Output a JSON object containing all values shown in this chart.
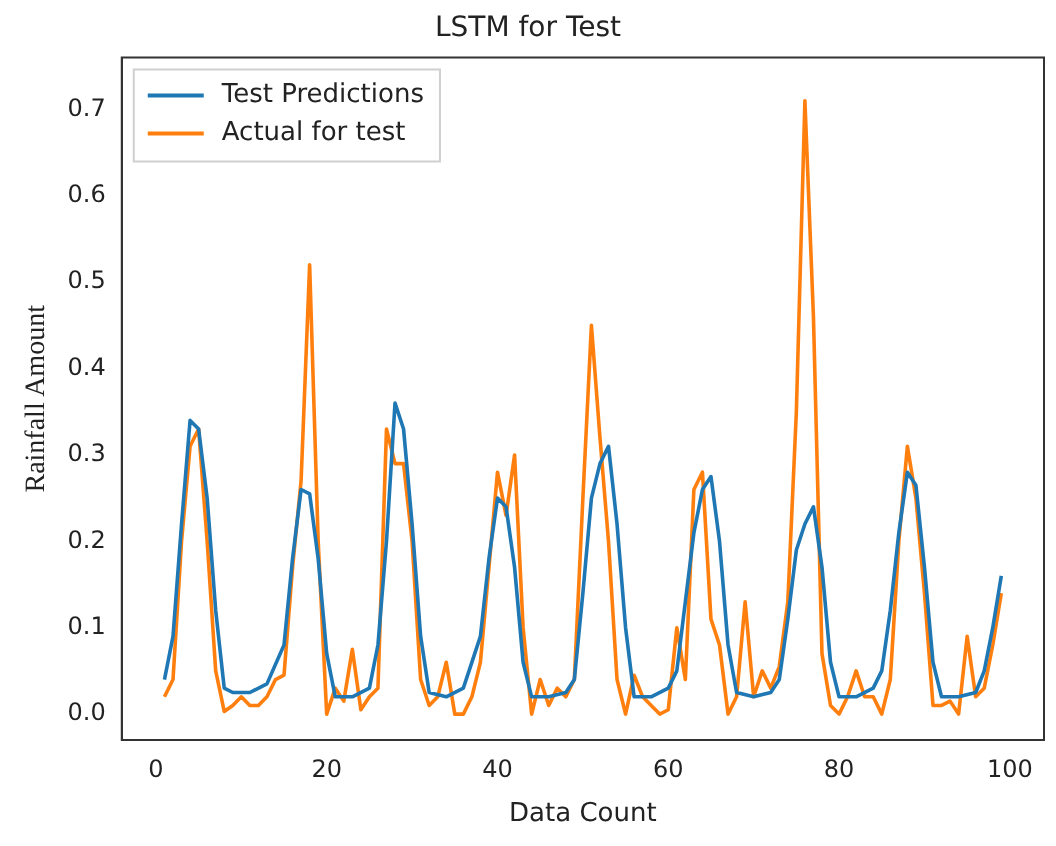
{
  "chart_data": {
    "type": "line",
    "title": "LSTM for Test",
    "xlabel": "Data Count",
    "ylabel": "Rainfall Amount",
    "xlim": [
      -4,
      104
    ],
    "xticks": [
      0,
      20,
      40,
      60,
      80,
      100
    ],
    "ylim": [
      -0.03,
      0.76
    ],
    "yticks": [
      {
        "value": 0,
        "label": "0.0"
      },
      {
        "value": 0.1,
        "label": "0.1"
      },
      {
        "value": 0.2,
        "label": "0.2"
      },
      {
        "value": 0.3,
        "label": "0.3"
      },
      {
        "value": 0.4,
        "label": "0.4"
      },
      {
        "value": 0.5,
        "label": "0.5"
      },
      {
        "value": 0.6,
        "label": "0.6"
      },
      {
        "value": 0.7,
        "label": "0.7"
      }
    ],
    "grid": false,
    "legend": "top left",
    "marker": "none",
    "line_style": "solid",
    "series": [
      {
        "name": "Test Predictions",
        "color": "#1f77b4",
        "x": [
          1,
          2,
          3,
          4,
          5,
          6,
          7,
          8,
          9,
          11,
          13,
          15,
          16,
          17,
          18,
          19,
          20,
          21,
          23,
          25,
          26,
          27,
          28,
          29,
          30,
          31,
          32,
          34,
          36,
          38,
          39,
          40,
          41,
          42,
          43,
          44,
          46,
          48,
          49,
          50,
          51,
          52,
          53,
          54,
          55,
          56,
          58,
          60,
          61,
          62,
          63,
          64,
          65,
          66,
          67,
          68,
          70,
          72,
          73,
          74,
          75,
          76,
          77,
          78,
          79,
          80,
          82,
          84,
          85,
          86,
          87,
          88,
          89,
          90,
          91,
          92,
          94,
          96,
          97,
          98,
          99
        ],
        "values": [
          0.04,
          0.09,
          0.22,
          0.34,
          0.33,
          0.25,
          0.12,
          0.03,
          0.025,
          0.025,
          0.035,
          0.08,
          0.18,
          0.26,
          0.255,
          0.18,
          0.07,
          0.02,
          0.02,
          0.03,
          0.08,
          0.2,
          0.36,
          0.33,
          0.22,
          0.09,
          0.025,
          0.02,
          0.03,
          0.09,
          0.18,
          0.25,
          0.24,
          0.17,
          0.06,
          0.02,
          0.02,
          0.025,
          0.04,
          0.14,
          0.25,
          0.29,
          0.31,
          0.22,
          0.1,
          0.02,
          0.02,
          0.03,
          0.05,
          0.13,
          0.21,
          0.26,
          0.275,
          0.2,
          0.08,
          0.025,
          0.02,
          0.025,
          0.04,
          0.11,
          0.19,
          0.22,
          0.24,
          0.17,
          0.06,
          0.02,
          0.02,
          0.03,
          0.05,
          0.12,
          0.21,
          0.28,
          0.265,
          0.17,
          0.06,
          0.02,
          0.02,
          0.025,
          0.05,
          0.1,
          0.16
        ]
      },
      {
        "name": "Actual for test",
        "color": "#ff7f0e",
        "x": [
          1,
          2,
          3,
          4,
          5,
          6,
          7,
          8,
          9,
          10,
          11,
          12,
          13,
          14,
          15,
          16,
          17,
          18,
          19,
          20,
          21,
          22,
          23,
          24,
          25,
          26,
          27,
          28,
          29,
          30,
          31,
          32,
          33,
          34,
          35,
          36,
          37,
          38,
          39,
          40,
          41,
          42,
          43,
          44,
          45,
          46,
          47,
          48,
          49,
          50,
          51,
          52,
          53,
          54,
          55,
          56,
          57,
          58,
          59,
          60,
          61,
          62,
          63,
          64,
          65,
          66,
          67,
          68,
          69,
          70,
          71,
          72,
          73,
          74,
          75,
          76,
          77,
          78,
          79,
          80,
          81,
          82,
          83,
          84,
          85,
          86,
          87,
          88,
          89,
          90,
          91,
          92,
          93,
          94,
          95,
          96,
          97,
          98,
          99
        ],
        "values": [
          0.02,
          0.04,
          0.2,
          0.31,
          0.33,
          0.2,
          0.05,
          0.003,
          0.01,
          0.02,
          0.01,
          0.01,
          0.02,
          0.04,
          0.045,
          0.17,
          0.27,
          0.52,
          0.2,
          0.0,
          0.03,
          0.015,
          0.075,
          0.005,
          0.02,
          0.03,
          0.33,
          0.29,
          0.29,
          0.2,
          0.04,
          0.01,
          0.02,
          0.06,
          0.0,
          0.0,
          0.02,
          0.06,
          0.17,
          0.28,
          0.23,
          0.3,
          0.1,
          0.0,
          0.04,
          0.01,
          0.03,
          0.02,
          0.04,
          0.25,
          0.45,
          0.32,
          0.2,
          0.04,
          0.0,
          0.045,
          0.02,
          0.01,
          0.0,
          0.005,
          0.1,
          0.04,
          0.26,
          0.28,
          0.11,
          0.08,
          0.0,
          0.02,
          0.13,
          0.02,
          0.05,
          0.03,
          0.055,
          0.13,
          0.35,
          0.71,
          0.46,
          0.07,
          0.01,
          0.0,
          0.02,
          0.05,
          0.02,
          0.02,
          0.0,
          0.04,
          0.2,
          0.31,
          0.25,
          0.14,
          0.01,
          0.01,
          0.015,
          0.0,
          0.09,
          0.02,
          0.03,
          0.08,
          0.14
        ]
      }
    ]
  }
}
